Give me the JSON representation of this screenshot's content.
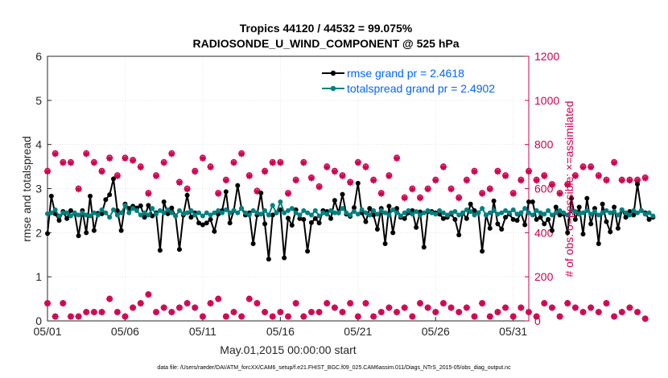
{
  "chart_data": {
    "type": "line",
    "title_line1": "Tropics 44120 / 44532 = 99.075%",
    "title_line2": "RADIOSONDE_U_WIND_COMPONENT @ 525 hPa",
    "xlabel": "May.01,2015 00:00:00 start",
    "ylabel": "rmse and totalspread",
    "ylabel_right": "# of obs: o=possible; ×=assimilated",
    "xlim": [
      1,
      32
    ],
    "ylim": [
      0,
      6
    ],
    "ylim_right": [
      0,
      1200
    ],
    "x_tick_labels": [
      {
        "x": 1,
        "label": "05/01"
      },
      {
        "x": 6,
        "label": "05/06"
      },
      {
        "x": 11,
        "label": "05/11"
      },
      {
        "x": 16,
        "label": "05/16"
      },
      {
        "x": 21,
        "label": "05/21"
      },
      {
        "x": 26,
        "label": "05/26"
      },
      {
        "x": 31,
        "label": "05/31"
      }
    ],
    "y_ticks": [
      0,
      1,
      2,
      3,
      4,
      5,
      6
    ],
    "y_ticks_right": [
      0,
      200,
      400,
      600,
      800,
      1000,
      1200
    ],
    "x_step_days": 0.25,
    "legend": [
      "rmse grand pr = 2.4618",
      "totalspread grand pr = 2.4902"
    ],
    "series": [
      {
        "name": "rmse",
        "color": "#000000",
        "values": [
          1.98,
          2.83,
          2.43,
          2.28,
          2.48,
          2.32,
          2.5,
          2.44,
          1.93,
          2.5,
          2.0,
          2.83,
          2.05,
          2.44,
          2.43,
          2.75,
          2.86,
          3.22,
          2.5,
          2.05,
          2.65,
          2.55,
          2.6,
          2.56,
          2.61,
          2.35,
          2.62,
          2.38,
          2.45,
          1.6,
          2.7,
          2.43,
          2.56,
          2.38,
          1.62,
          2.4,
          2.85,
          2.35,
          2.45,
          2.22,
          2.18,
          2.22,
          2.3,
          2.03,
          2.42,
          2.5,
          2.93,
          2.22,
          2.5,
          3.07,
          2.55,
          2.4,
          2.45,
          1.75,
          2.4,
          2.9,
          2.2,
          1.4,
          2.4,
          2.45,
          2.52,
          1.43,
          2.33,
          2.17,
          2.52,
          2.32,
          2.3,
          1.58,
          2.23,
          2.32,
          2.22,
          2.5,
          2.48,
          2.32,
          2.73,
          2.45,
          2.87,
          2.42,
          2.37,
          2.57,
          3.12,
          2.45,
          2.25,
          2.55,
          2.4,
          2.08,
          2.55,
          1.75,
          2.6,
          2.0,
          2.55,
          2.35,
          2.32,
          2.45,
          2.5,
          2.12,
          2.47,
          1.67,
          2.48,
          2.48,
          2.45,
          2.42,
          2.32,
          2.35,
          2.42,
          2.3,
          1.95,
          2.45,
          2.32,
          2.65,
          2.5,
          2.45,
          1.58,
          2.4,
          2.1,
          2.72,
          2.2,
          2.08,
          2.35,
          2.42,
          2.3,
          2.28,
          2.45,
          2.18,
          2.7,
          2.7,
          2.3,
          2.35,
          2.2,
          2.3,
          2.05,
          2.58,
          2.4,
          2.42,
          2.0,
          2.78,
          2.3,
          2.58,
          1.97,
          2.78,
          2.2,
          2.55,
          1.75,
          2.65,
          2.25,
          2.02,
          2.58,
          2.1,
          2.52,
          2.35,
          2.48,
          2.4,
          3.1,
          2.5,
          2.45,
          2.3,
          2.35
        ]
      },
      {
        "name": "totalspread",
        "color": "#008080",
        "values": [
          2.43,
          2.45,
          2.52,
          2.38,
          2.45,
          2.45,
          2.38,
          2.45,
          2.4,
          2.45,
          2.4,
          2.38,
          2.45,
          2.4,
          2.52,
          2.45,
          2.35,
          2.52,
          2.4,
          2.45,
          2.62,
          2.45,
          2.55,
          2.5,
          2.4,
          2.45,
          2.4,
          2.55,
          2.42,
          2.5,
          2.45,
          2.52,
          2.45,
          2.38,
          2.5,
          2.43,
          2.45,
          2.5,
          2.4,
          2.45,
          2.38,
          2.45,
          2.4,
          2.45,
          2.5,
          2.45,
          2.52,
          2.45,
          2.5,
          2.45,
          2.55,
          2.45,
          2.4,
          2.5,
          2.45,
          2.42,
          2.5,
          2.4,
          2.62,
          2.45,
          2.7,
          2.45,
          2.5,
          2.55,
          2.45,
          2.4,
          2.5,
          2.45,
          2.4,
          2.5,
          2.38,
          2.45,
          2.42,
          2.5,
          2.45,
          2.45,
          2.55,
          2.45,
          2.4,
          2.48,
          2.42,
          2.52,
          2.45,
          2.4,
          2.5,
          2.42,
          2.5,
          2.45,
          2.4,
          2.52,
          2.45,
          2.38,
          2.45,
          2.5,
          2.42,
          2.48,
          2.4,
          2.45,
          2.5,
          2.45,
          2.42,
          2.5,
          2.45,
          2.4,
          2.45,
          2.48,
          2.4,
          2.45,
          2.52,
          2.48,
          2.4,
          2.45,
          2.55,
          2.4,
          2.45,
          2.5,
          2.42,
          2.45,
          2.5,
          2.45,
          2.52,
          2.42,
          2.45,
          2.55,
          2.45,
          2.4,
          2.5,
          2.45,
          2.42,
          2.5,
          2.4,
          2.45,
          2.5,
          2.45,
          2.4,
          2.5,
          2.48,
          2.42,
          2.45,
          2.5,
          2.42,
          2.48,
          2.4,
          2.45,
          2.5,
          2.45,
          2.48,
          2.4,
          2.52,
          2.45,
          2.4,
          2.5,
          2.45,
          2.5,
          2.42,
          2.45,
          2.38
        ]
      },
      {
        "name": "obs possible",
        "color": "#d0004f",
        "marker": "o",
        "axis": "right",
        "values": [
          680,
          740,
          760,
          740,
          720,
          650,
          720,
          620,
          600,
          700,
          760,
          730,
          720,
          740,
          680,
          710,
          740,
          700,
          660,
          720,
          740,
          770,
          730,
          760,
          700,
          680,
          580,
          630,
          660,
          680,
          720,
          780,
          760,
          720,
          630,
          590,
          600,
          620,
          680,
          720,
          740,
          760,
          700,
          640,
          580,
          560,
          640,
          700,
          720,
          740,
          760,
          700,
          660,
          600,
          590,
          620,
          680,
          760,
          720,
          700,
          720,
          640,
          580,
          600,
          640,
          680,
          720,
          700,
          650,
          600,
          610,
          640,
          700,
          760,
          680,
          720,
          660,
          600,
          630,
          680,
          720,
          760,
          700,
          720,
          640,
          590,
          580,
          620,
          660,
          720,
          740,
          700,
          560,
          580,
          600,
          540,
          560,
          580,
          600,
          620,
          640,
          680,
          700,
          640,
          600,
          580,
          560,
          600,
          640,
          700,
          680,
          640,
          580,
          560,
          600,
          640,
          680,
          700,
          660,
          620,
          580,
          600,
          640,
          660,
          680,
          700,
          640,
          620,
          660,
          680,
          620,
          600,
          580,
          600,
          620,
          640,
          660,
          680,
          700,
          720,
          700,
          680,
          660,
          620,
          640,
          680,
          720,
          680,
          640,
          620,
          640,
          660,
          640,
          620,
          650,
          640
        ]
      },
      {
        "name": "obs assimilated",
        "color": "#d0004f",
        "marker": "x",
        "axis": "right",
        "values": [
          677,
          737,
          757,
          737,
          717,
          647,
          717,
          617,
          597,
          697,
          757,
          727,
          717,
          737,
          677,
          707,
          737,
          697,
          657,
          717,
          737,
          767,
          727,
          757,
          697,
          677,
          577,
          627,
          657,
          677,
          717,
          777,
          757,
          717,
          627,
          587,
          597,
          617,
          677,
          717,
          737,
          757,
          697,
          637,
          577,
          557,
          637,
          697,
          717,
          737,
          757,
          697,
          657,
          597,
          587,
          617,
          677,
          757,
          717,
          697,
          717,
          637,
          577,
          597,
          637,
          677,
          717,
          697,
          647,
          597,
          607,
          637,
          697,
          757,
          677,
          717,
          657,
          597,
          627,
          677,
          717,
          757,
          697,
          717,
          637,
          587,
          577,
          617,
          657,
          717,
          737,
          697,
          557,
          577,
          597,
          537,
          557,
          577,
          597,
          617,
          637,
          677,
          697,
          637,
          597,
          577,
          557,
          597,
          637,
          697,
          677,
          637,
          577,
          557,
          597,
          637,
          677,
          697,
          657,
          617,
          577,
          597,
          637,
          657,
          677,
          697,
          637,
          617,
          657,
          677,
          617,
          597,
          577,
          597,
          617,
          637,
          657,
          677,
          697,
          717,
          697,
          677,
          657,
          617,
          637,
          677,
          717,
          677,
          637,
          617,
          637,
          657,
          637,
          617,
          647,
          637
        ]
      },
      {
        "name": "obs bottom",
        "color": "#d0004f",
        "axis": "right",
        "values": [
          80,
          40,
          20,
          40,
          80,
          60,
          20,
          40,
          20,
          60,
          40,
          80,
          40,
          20,
          40,
          60,
          100,
          60,
          40,
          80,
          20,
          40,
          60,
          20,
          80,
          40,
          120,
          60,
          40,
          20,
          60,
          80,
          40,
          20,
          60,
          40,
          80,
          100,
          60,
          40,
          20,
          40,
          80,
          60,
          100,
          40,
          20,
          60,
          40,
          80,
          20,
          60,
          100,
          40,
          80,
          20,
          40,
          60,
          20,
          80,
          40,
          60,
          20,
          40,
          80,
          60,
          20,
          100,
          40,
          60,
          40,
          20,
          80,
          40,
          60,
          20,
          40,
          60,
          80,
          40,
          20,
          60,
          80,
          40,
          20,
          60,
          40,
          80,
          60,
          20,
          40,
          80,
          60,
          40,
          20,
          60,
          80,
          40,
          60,
          20,
          40,
          60,
          80,
          40,
          60,
          20,
          40,
          80,
          60,
          40,
          20,
          60,
          80,
          40,
          20,
          60,
          40,
          80,
          60,
          40,
          20,
          40,
          60,
          80,
          40,
          60,
          20,
          40,
          80,
          100,
          60,
          40,
          20,
          60,
          80,
          40,
          60,
          20,
          40,
          80,
          60,
          20,
          40,
          60,
          80,
          40,
          20,
          60,
          40,
          80,
          60,
          20,
          40,
          20,
          10,
          0
        ]
      }
    ],
    "footnote": "data file: /Users/raeder/DAI/ATM_forcXX/CAM6_setup/f.e21.FHIST_BGC.f09_025.CAM6assim.011/Diags_NTrS_2015-05/obs_diag_output.nc"
  }
}
